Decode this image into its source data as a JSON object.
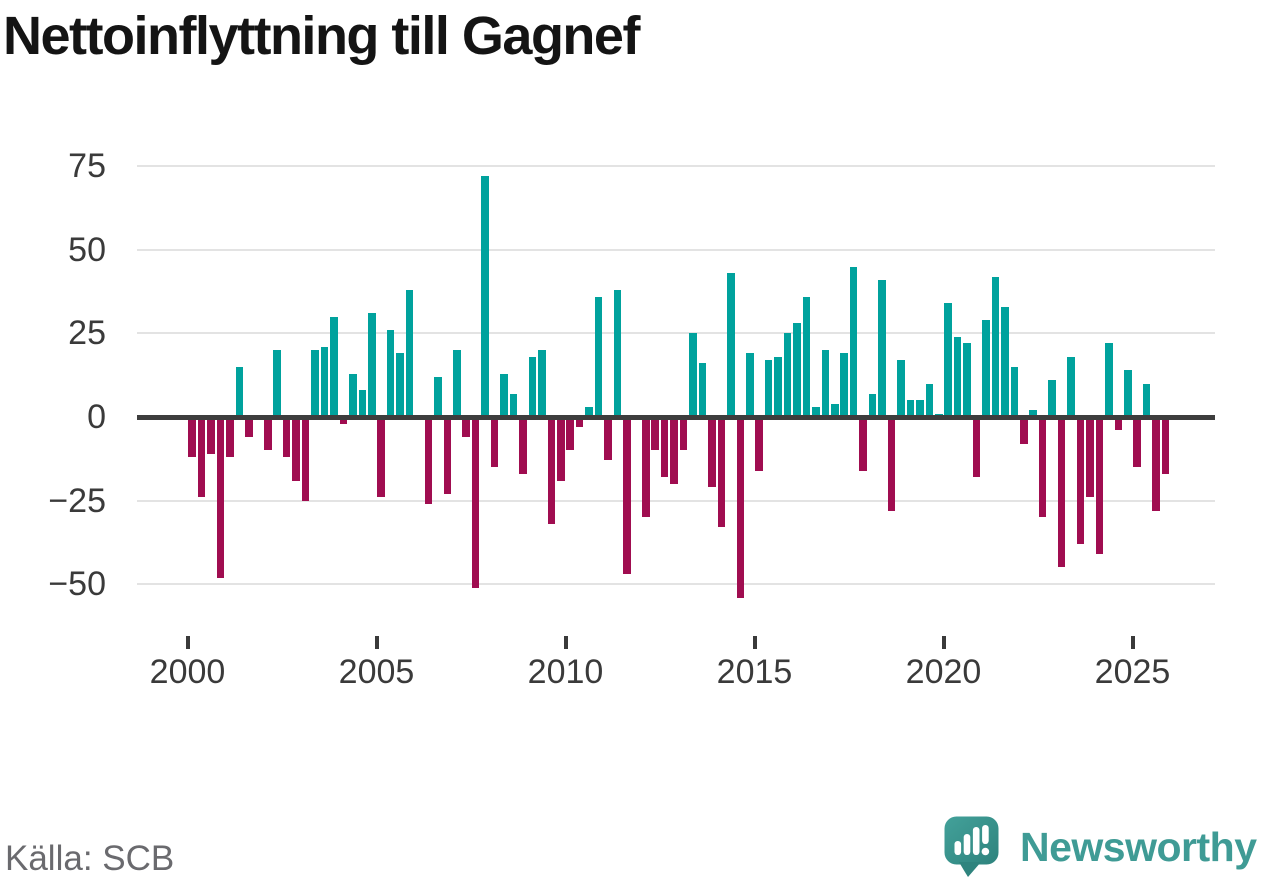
{
  "source": "Källa: SCB",
  "brand": {
    "name": "Newsworthy",
    "icon": "newsworthy-speech-bubble-bar-chart-icon",
    "wordmark_color": "#3f9b95",
    "icon_color": "#37948e"
  },
  "colors": {
    "positive": "#00a29d",
    "negative": "#a00d50",
    "axis": "#3d3d3d",
    "gridline": "#e3e3e3",
    "tick_label": "#3a3a3a",
    "source_text": "#6a6a6e",
    "title_text": "#141414"
  },
  "chart_data": {
    "type": "bar",
    "title": "Nettoinflyttning till Gagnef",
    "xlabel": "",
    "ylabel": "",
    "frequency": "quarterly",
    "start_period": "2000-Q1",
    "end_period": "2025-Q4",
    "x_tick_labels": [
      "2000",
      "2005",
      "2010",
      "2015",
      "2020",
      "2025"
    ],
    "y_tick_labels": [
      "75",
      "50",
      "25",
      "0",
      "−25",
      "−50"
    ],
    "yticks": [
      75,
      50,
      25,
      0,
      -25,
      -50
    ],
    "ylim": [
      -60,
      80
    ],
    "grid": "horizontal",
    "legend": "none",
    "series": [
      {
        "name": "Nettoinflyttning",
        "values": [
          -12,
          -24,
          -11,
          -48,
          -12,
          15,
          -6,
          0,
          -10,
          20,
          -12,
          -19,
          -25,
          20,
          21,
          30,
          -2,
          13,
          8,
          31,
          -24,
          26,
          19,
          38,
          -1,
          -26,
          12,
          -23,
          20,
          -6,
          -51,
          72,
          -15,
          13,
          7,
          -17,
          18,
          20,
          -32,
          -19,
          -10,
          -3,
          3,
          36,
          -13,
          38,
          -47,
          -1,
          -30,
          -10,
          -18,
          -20,
          -10,
          25,
          16,
          -21,
          -33,
          43,
          -54,
          19,
          -16,
          17,
          18,
          25,
          28,
          36,
          3,
          20,
          4,
          19,
          45,
          -16,
          7,
          41,
          -28,
          17,
          5,
          5,
          10,
          1,
          34,
          24,
          22,
          -18,
          29,
          42,
          33,
          15,
          -8,
          2,
          -30,
          11,
          -45,
          18,
          -38,
          -24,
          -41,
          22,
          -4,
          14,
          -15,
          10,
          -28,
          -17
        ]
      }
    ]
  }
}
